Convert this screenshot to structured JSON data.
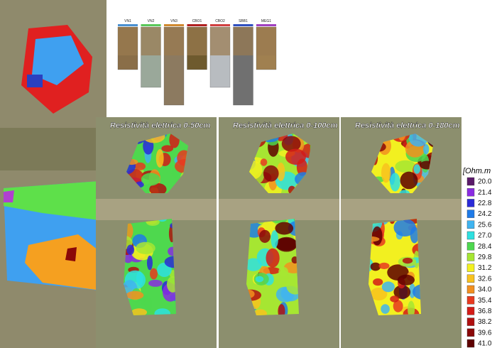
{
  "profile": {
    "columns": [
      "VN1",
      "VN2",
      "VN3",
      "CBO1",
      "CBO2",
      "SBB1",
      "MEG1"
    ]
  },
  "panels": [
    {
      "title": "Resistività elettrica 0-50cm"
    },
    {
      "title": "Resistività elettrica 0-100cm"
    },
    {
      "title": "Resistività elettrica 0-180cm"
    }
  ],
  "legend": {
    "title": "[Ohm.m",
    "labels": [
      "20.0",
      "21.4",
      "22.8",
      "24.2",
      "25.6",
      "27.0",
      "28.4",
      "29.8",
      "31.2",
      "32.6",
      "34.0",
      "35.4",
      "36.8",
      "38.2",
      "39.6",
      "41.0"
    ],
    "colors": [
      "#5a1a6a",
      "#8a2be2",
      "#2a2ad8",
      "#1e7be8",
      "#3fb4f0",
      "#2ee0e0",
      "#4ed84e",
      "#a6e632",
      "#f2f020",
      "#f8c21e",
      "#f29020",
      "#e83a20",
      "#d41c18",
      "#b01010",
      "#8a0808",
      "#5e0000"
    ]
  }
}
